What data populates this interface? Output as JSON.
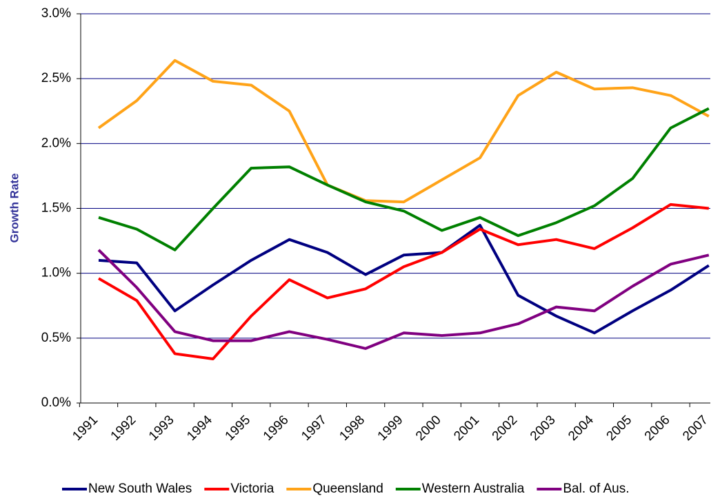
{
  "chart_data": {
    "type": "line",
    "y_label": "Growth Rate",
    "categories": [
      "1991",
      "1992",
      "1993",
      "1994",
      "1995",
      "1996",
      "1997",
      "1998",
      "1999",
      "2000",
      "2001",
      "2002",
      "2003",
      "2004",
      "2005",
      "2006",
      "2007"
    ],
    "series": [
      {
        "name": "New South Wales",
        "color": "#000080",
        "values": [
          1.1,
          1.08,
          0.71,
          0.91,
          1.1,
          1.26,
          1.16,
          0.99,
          1.14,
          1.16,
          1.37,
          0.83,
          0.67,
          0.54,
          0.71,
          0.87,
          1.06
        ]
      },
      {
        "name": "Victoria",
        "color": "#ff0000",
        "values": [
          0.96,
          0.79,
          0.38,
          0.34,
          0.67,
          0.95,
          0.81,
          0.88,
          1.05,
          1.16,
          1.34,
          1.22,
          1.26,
          1.19,
          1.35,
          1.53,
          1.5
        ]
      },
      {
        "name": "Queensland",
        "color": "#ffa318",
        "values": [
          2.12,
          2.33,
          2.64,
          2.48,
          2.45,
          2.25,
          1.68,
          1.56,
          1.55,
          1.72,
          1.89,
          2.37,
          2.55,
          2.42,
          2.43,
          2.37,
          2.21
        ]
      },
      {
        "name": "Western Australia",
        "color": "#008000",
        "values": [
          1.43,
          1.34,
          1.18,
          1.5,
          1.81,
          1.82,
          1.68,
          1.55,
          1.48,
          1.33,
          1.43,
          1.29,
          1.39,
          1.52,
          1.73,
          2.12,
          2.27
        ]
      },
      {
        "name": "Bal. of Aus.",
        "color": "#800080",
        "values": [
          1.18,
          0.89,
          0.55,
          0.48,
          0.48,
          0.55,
          0.49,
          0.42,
          0.54,
          0.52,
          0.54,
          0.61,
          0.74,
          0.71,
          0.9,
          1.07,
          1.14
        ]
      }
    ],
    "ylim": [
      0,
      3
    ],
    "yticks": [
      {
        "value": 0,
        "label": "0.0%"
      },
      {
        "value": 0.5,
        "label": "0.5%"
      },
      {
        "value": 1,
        "label": "1.0%"
      },
      {
        "value": 1.5,
        "label": "1.5%"
      },
      {
        "value": 2,
        "label": "2.0%"
      },
      {
        "value": 2.5,
        "label": "2.5%"
      },
      {
        "value": 3,
        "label": "3.0%"
      }
    ],
    "grid": true,
    "grid_color": "#000080",
    "legend": "bottom"
  }
}
